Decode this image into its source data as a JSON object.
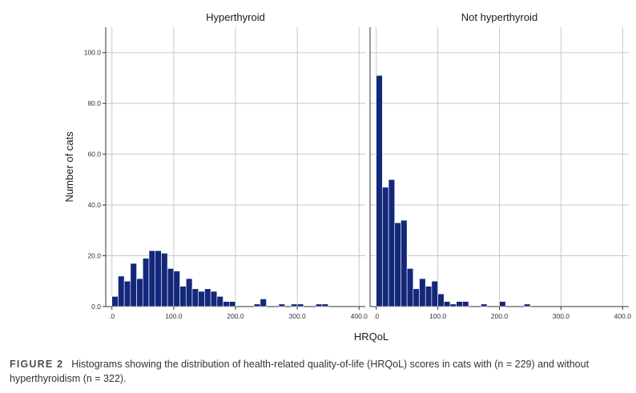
{
  "chart_data": {
    "type": "bar",
    "ylabel": "Number of cats",
    "xlabel": "HRQoL",
    "ylim": [
      0,
      110
    ],
    "xlim": [
      -10,
      410
    ],
    "yticks": [
      0,
      20,
      40,
      60,
      80,
      100
    ],
    "ytick_labels": [
      "0.0",
      "20.0",
      "40.0",
      "60.0",
      "80.0",
      "100.0"
    ],
    "xticks": [
      0,
      100,
      200,
      300,
      400
    ],
    "xtick_labels": [
      ".0",
      "100.0",
      "200.0",
      "300.0",
      "400.0"
    ],
    "grid": true,
    "bin_width": 10,
    "bar_color": "#14287a",
    "panels": [
      {
        "title": "Hyperthyroid",
        "bins": [
          {
            "x0": 0,
            "count": 4
          },
          {
            "x0": 10,
            "count": 12
          },
          {
            "x0": 20,
            "count": 10
          },
          {
            "x0": 30,
            "count": 17
          },
          {
            "x0": 40,
            "count": 11
          },
          {
            "x0": 50,
            "count": 19
          },
          {
            "x0": 60,
            "count": 22
          },
          {
            "x0": 70,
            "count": 22
          },
          {
            "x0": 80,
            "count": 21
          },
          {
            "x0": 90,
            "count": 15
          },
          {
            "x0": 100,
            "count": 14
          },
          {
            "x0": 110,
            "count": 8
          },
          {
            "x0": 120,
            "count": 11
          },
          {
            "x0": 130,
            "count": 7
          },
          {
            "x0": 140,
            "count": 6
          },
          {
            "x0": 150,
            "count": 7
          },
          {
            "x0": 160,
            "count": 6
          },
          {
            "x0": 170,
            "count": 4
          },
          {
            "x0": 180,
            "count": 2
          },
          {
            "x0": 190,
            "count": 2
          },
          {
            "x0": 230,
            "count": 1
          },
          {
            "x0": 240,
            "count": 3
          },
          {
            "x0": 270,
            "count": 1
          },
          {
            "x0": 290,
            "count": 1
          },
          {
            "x0": 300,
            "count": 1
          },
          {
            "x0": 330,
            "count": 1
          },
          {
            "x0": 340,
            "count": 1
          }
        ]
      },
      {
        "title": "Not hyperthyroid",
        "bins": [
          {
            "x0": 0,
            "count": 91
          },
          {
            "x0": 10,
            "count": 47
          },
          {
            "x0": 20,
            "count": 50
          },
          {
            "x0": 30,
            "count": 33
          },
          {
            "x0": 40,
            "count": 34
          },
          {
            "x0": 50,
            "count": 15
          },
          {
            "x0": 60,
            "count": 7
          },
          {
            "x0": 70,
            "count": 11
          },
          {
            "x0": 80,
            "count": 8
          },
          {
            "x0": 90,
            "count": 10
          },
          {
            "x0": 100,
            "count": 5
          },
          {
            "x0": 110,
            "count": 2
          },
          {
            "x0": 120,
            "count": 1
          },
          {
            "x0": 130,
            "count": 2
          },
          {
            "x0": 140,
            "count": 2
          },
          {
            "x0": 170,
            "count": 1
          },
          {
            "x0": 200,
            "count": 2
          },
          {
            "x0": 240,
            "count": 1
          }
        ]
      }
    ]
  },
  "caption": {
    "label": "FIGURE 2",
    "text": "Histograms showing the distribution of health-related quality-of-life (HRQoL) scores in cats with (n = 229) and without hyperthyroidism (n = 322)."
  }
}
